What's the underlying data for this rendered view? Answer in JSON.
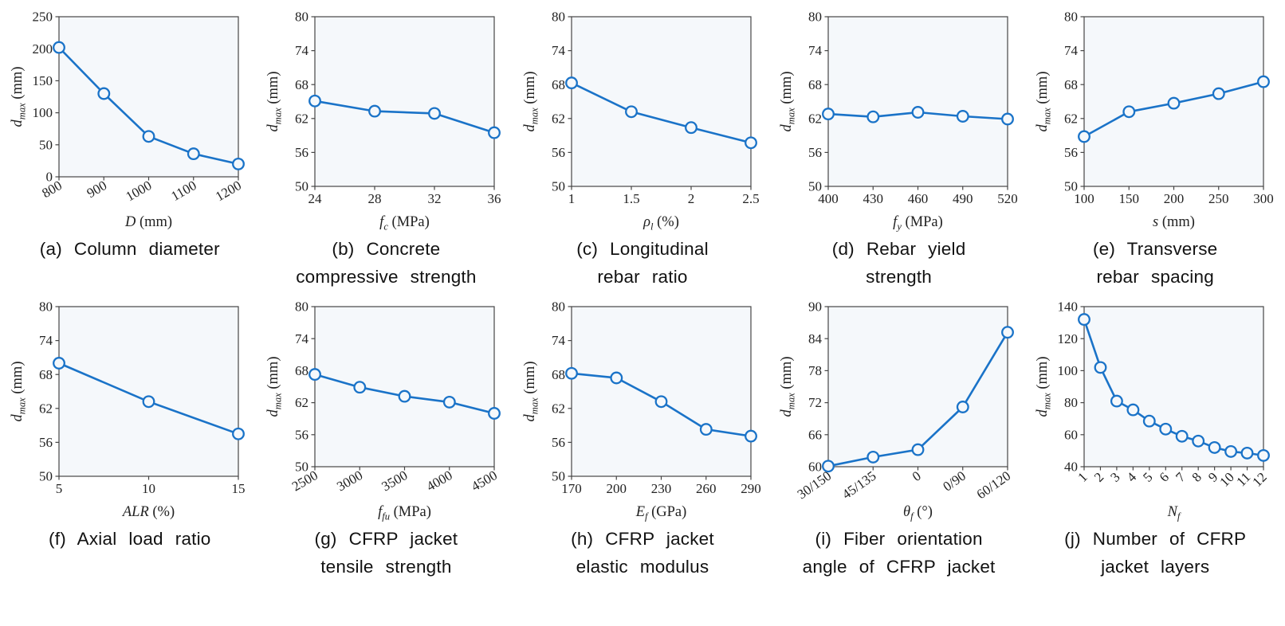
{
  "figure": {
    "description": "Parametric study: maximum lateral displacement d_max of CFRP-jacketed RC columns",
    "rows": 2,
    "cols": 5
  },
  "colors": {
    "line": "#1a73c8",
    "marker_fill": "#f5f8fb",
    "plot_bg": "#f5f8fb",
    "axis": "#454545",
    "tick_text": "#222222",
    "caption_text": "#121212"
  },
  "chart_data": [
    {
      "id": "a",
      "type": "line",
      "caption": "(a) Column diameter",
      "xlabel_var": "D",
      "xlabel_sub": "",
      "xlabel_unit": "(mm)",
      "ylabel_var": "d",
      "ylabel_sub": "max",
      "ylabel_unit": "(mm)",
      "categories": [
        "800",
        "900",
        "1000",
        "1100",
        "1200"
      ],
      "values": [
        202,
        130,
        63,
        36,
        20
      ],
      "ylim": [
        0,
        250
      ],
      "yticks": [
        0,
        50,
        100,
        150,
        200,
        250
      ],
      "xtick_rotation": 30,
      "grid": false,
      "legend": "none"
    },
    {
      "id": "b",
      "type": "line",
      "caption": "(b) Concrete\ncompressive strength",
      "xlabel_var": "f",
      "xlabel_sub": "c",
      "xlabel_unit": "(MPa)",
      "ylabel_var": "d",
      "ylabel_sub": "max",
      "ylabel_unit": "(mm)",
      "categories": [
        "24",
        "28",
        "32",
        "36"
      ],
      "values": [
        65.1,
        63.3,
        62.9,
        59.5
      ],
      "ylim": [
        50,
        80
      ],
      "yticks": [
        50,
        56,
        62,
        68,
        74,
        80
      ],
      "xtick_rotation": 0,
      "grid": false,
      "legend": "none"
    },
    {
      "id": "c",
      "type": "line",
      "caption": "(c) Longitudinal\nrebar ratio",
      "xlabel_var": "ρ",
      "xlabel_sub": "l",
      "xlabel_unit": "(%)",
      "ylabel_var": "d",
      "ylabel_sub": "max",
      "ylabel_unit": "(mm)",
      "categories": [
        "1",
        "1.5",
        "2",
        "2.5"
      ],
      "values": [
        68.3,
        63.2,
        60.4,
        57.7
      ],
      "ylim": [
        50,
        80
      ],
      "yticks": [
        50,
        56,
        62,
        68,
        74,
        80
      ],
      "xtick_rotation": 0,
      "grid": false,
      "legend": "none"
    },
    {
      "id": "d",
      "type": "line",
      "caption": "(d) Rebar yield\nstrength",
      "xlabel_var": "f",
      "xlabel_sub": "y",
      "xlabel_unit": "(MPa)",
      "ylabel_var": "d",
      "ylabel_sub": "max",
      "ylabel_unit": "(mm)",
      "categories": [
        "400",
        "430",
        "460",
        "490",
        "520"
      ],
      "values": [
        62.8,
        62.3,
        63.1,
        62.4,
        61.9
      ],
      "ylim": [
        50,
        80
      ],
      "yticks": [
        50,
        56,
        62,
        68,
        74,
        80
      ],
      "xtick_rotation": 0,
      "grid": false,
      "legend": "none"
    },
    {
      "id": "e",
      "type": "line",
      "caption": "(e) Transverse\nrebar spacing",
      "xlabel_var": "s",
      "xlabel_sub": "",
      "xlabel_unit": "(mm)",
      "ylabel_var": "d",
      "ylabel_sub": "max",
      "ylabel_unit": "(mm)",
      "categories": [
        "100",
        "150",
        "200",
        "250",
        "300"
      ],
      "values": [
        58.8,
        63.2,
        64.7,
        66.4,
        68.5
      ],
      "ylim": [
        50,
        80
      ],
      "yticks": [
        50,
        56,
        62,
        68,
        74,
        80
      ],
      "xtick_rotation": 0,
      "grid": false,
      "legend": "none"
    },
    {
      "id": "f",
      "type": "line",
      "caption": "(f) Axial load ratio",
      "xlabel_var": "ALR",
      "xlabel_sub": "",
      "xlabel_unit": "(%)",
      "ylabel_var": "d",
      "ylabel_sub": "max",
      "ylabel_unit": "(mm)",
      "categories": [
        "5",
        "10",
        "15"
      ],
      "values": [
        70.0,
        63.2,
        57.5
      ],
      "ylim": [
        50,
        80
      ],
      "yticks": [
        50,
        56,
        62,
        68,
        74,
        80
      ],
      "xtick_rotation": 0,
      "grid": false,
      "legend": "none"
    },
    {
      "id": "g",
      "type": "line",
      "caption": "(g) CFRP jacket\ntensile strength",
      "xlabel_var": "f",
      "xlabel_sub": "fu",
      "xlabel_unit": "(MPa)",
      "ylabel_var": "d",
      "ylabel_sub": "max",
      "ylabel_unit": "(mm)",
      "categories": [
        "2500",
        "3000",
        "3500",
        "4000",
        "4500"
      ],
      "values": [
        67.3,
        64.9,
        63.2,
        62.1,
        60.0
      ],
      "ylim": [
        50,
        80
      ],
      "yticks": [
        50,
        56,
        62,
        68,
        74,
        80
      ],
      "xtick_rotation": 30,
      "grid": false,
      "legend": "none"
    },
    {
      "id": "h",
      "type": "line",
      "caption": "(h) CFRP jacket\nelastic modulus",
      "xlabel_var": "E",
      "xlabel_sub": "f",
      "xlabel_unit": "(GPa)",
      "ylabel_var": "d",
      "ylabel_sub": "max",
      "ylabel_unit": "(mm)",
      "categories": [
        "170",
        "200",
        "230",
        "260",
        "290"
      ],
      "values": [
        68.2,
        67.4,
        63.2,
        58.3,
        57.1
      ],
      "ylim": [
        50,
        80
      ],
      "yticks": [
        50,
        56,
        62,
        68,
        74,
        80
      ],
      "xtick_rotation": 0,
      "grid": false,
      "legend": "none"
    },
    {
      "id": "i",
      "type": "line",
      "caption": "(i) Fiber orientation\nangle of CFRP jacket",
      "xlabel_var": "θ",
      "xlabel_sub": "f",
      "xlabel_unit": "(°)",
      "ylabel_var": "d",
      "ylabel_sub": "max",
      "ylabel_unit": "(mm)",
      "categories": [
        "30/150",
        "45/135",
        "0",
        "0/90",
        "60/120"
      ],
      "values": [
        60.1,
        61.8,
        63.2,
        71.2,
        85.2
      ],
      "ylim": [
        60,
        90
      ],
      "yticks": [
        60,
        66,
        72,
        78,
        84,
        90
      ],
      "xtick_rotation": 35,
      "grid": false,
      "legend": "none"
    },
    {
      "id": "j",
      "type": "line",
      "caption": "(j) Number of CFRP\njacket layers",
      "xlabel_var": "N",
      "xlabel_sub": "f",
      "xlabel_unit": "",
      "ylabel_var": "d",
      "ylabel_sub": "max",
      "ylabel_unit": "(mm)",
      "categories": [
        "1",
        "2",
        "3",
        "4",
        "5",
        "6",
        "7",
        "8",
        "9",
        "10",
        "11",
        "12"
      ],
      "values": [
        132,
        102,
        81,
        75.5,
        68.5,
        63.5,
        59,
        56,
        52,
        49.5,
        48.5,
        47
      ],
      "ylim": [
        40,
        140
      ],
      "yticks": [
        40,
        60,
        80,
        100,
        120,
        140
      ],
      "xtick_rotation": 45,
      "grid": false,
      "legend": "none"
    }
  ]
}
